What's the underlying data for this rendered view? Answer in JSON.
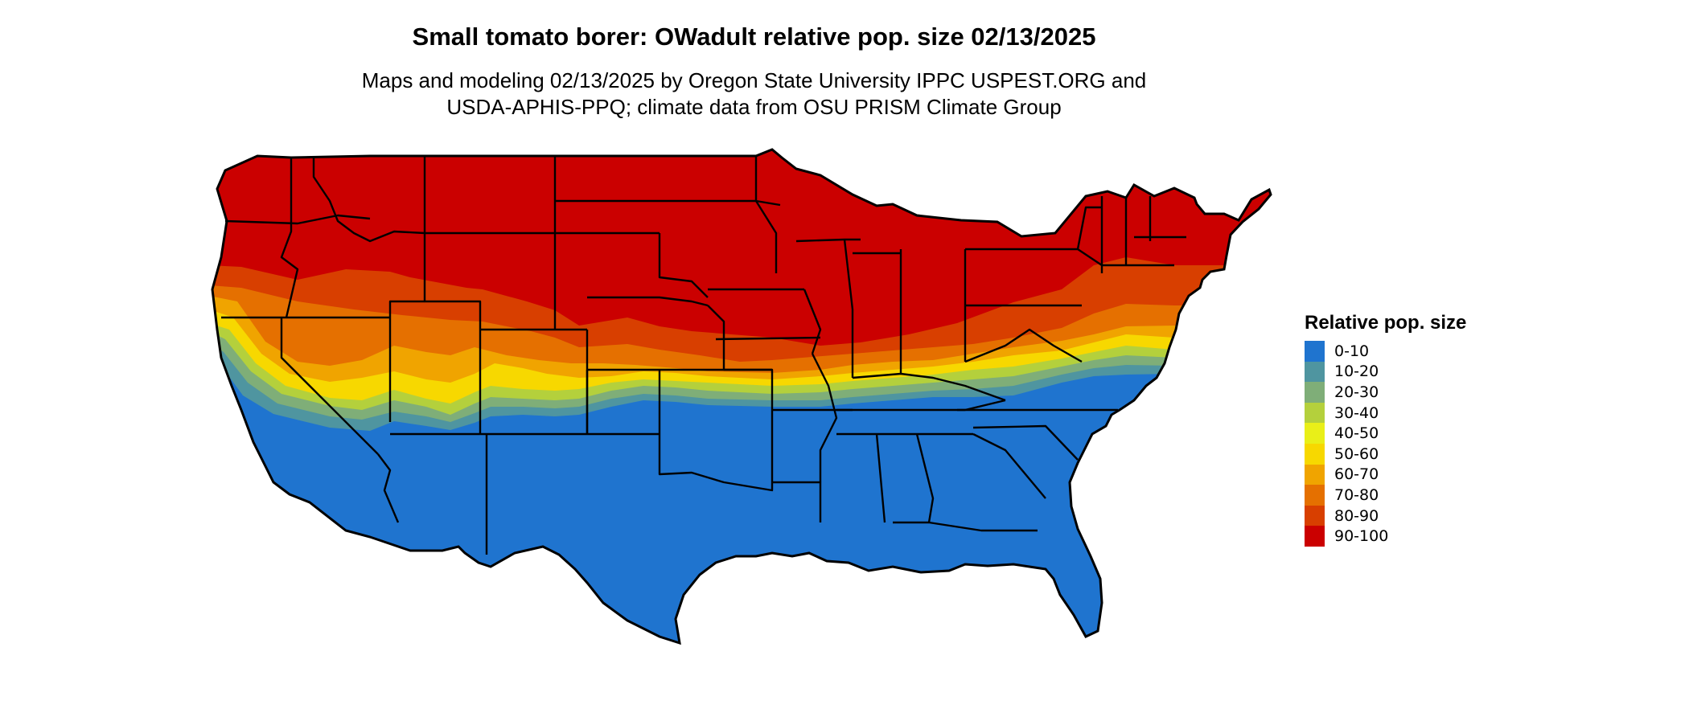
{
  "header": {
    "title": "Small tomato borer: OWadult relative pop. size 02/13/2025",
    "subtitle_line1": "Maps and modeling 02/13/2025 by Oregon State University IPPC USPEST.ORG and",
    "subtitle_line2": "USDA-APHIS-PPQ; climate data from OSU PRISM Climate Group"
  },
  "legend": {
    "title": "Relative pop. size",
    "items": [
      {
        "label": "0-10",
        "color": "#1f74cf"
      },
      {
        "label": "10-20",
        "color": "#4f95a0"
      },
      {
        "label": "20-30",
        "color": "#7fae78"
      },
      {
        "label": "30-40",
        "color": "#b4d03c"
      },
      {
        "label": "40-50",
        "color": "#e9ef18"
      },
      {
        "label": "50-60",
        "color": "#f7d800"
      },
      {
        "label": "60-70",
        "color": "#f0a400"
      },
      {
        "label": "70-80",
        "color": "#e57000"
      },
      {
        "label": "80-90",
        "color": "#d83f00"
      },
      {
        "label": "90-100",
        "color": "#cb0000"
      }
    ]
  },
  "map": {
    "region": "contiguous United States",
    "bands_south_to_north": [
      "0-10",
      "10-20",
      "20-30",
      "30-40",
      "40-50",
      "50-60",
      "60-70",
      "70-80",
      "80-90",
      "90-100"
    ]
  }
}
